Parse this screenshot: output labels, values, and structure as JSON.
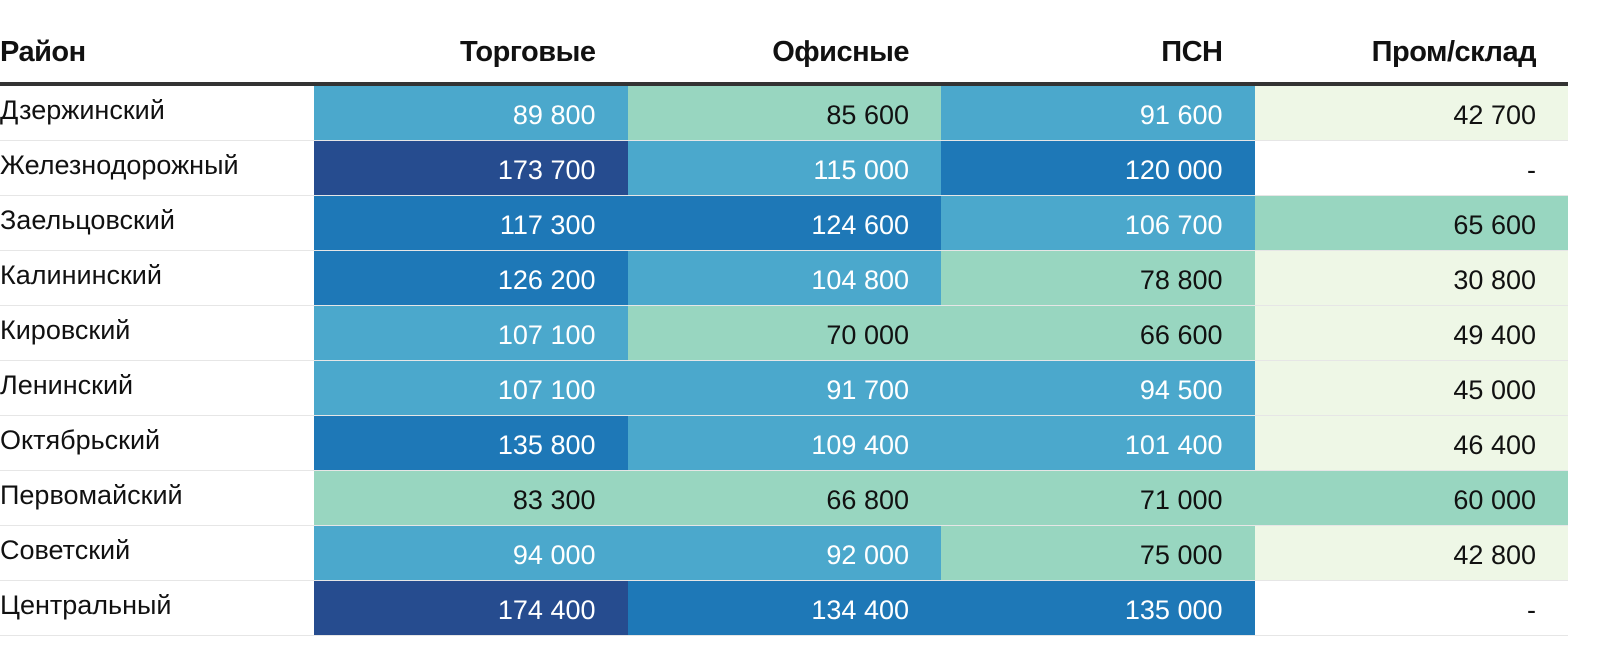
{
  "chart_data": {
    "type": "table",
    "columns": [
      "Район",
      "Торговые",
      "Офисные",
      "ПСН",
      "Пром/склад"
    ],
    "rows": [
      {
        "district": "Дзержинский",
        "values": [
          "89 800",
          "85 600",
          "91 600",
          "42 700"
        ],
        "colors": [
          "#4ba8cc",
          "#98d6c0",
          "#4ba8cc",
          "#eef7e6"
        ]
      },
      {
        "district": "Железнодорожный",
        "values": [
          "173 700",
          "115 000",
          "120 000",
          "-"
        ],
        "colors": [
          "#264c8f",
          "#4ba8cc",
          "#1e78b7",
          "#ffffff"
        ]
      },
      {
        "district": "Заельцовский",
        "values": [
          "117 300",
          "124 600",
          "106 700",
          "65 600"
        ],
        "colors": [
          "#1e78b7",
          "#1e78b7",
          "#4ba8cc",
          "#98d6c0"
        ]
      },
      {
        "district": "Калининский",
        "values": [
          "126 200",
          "104 800",
          "78 800",
          "30 800"
        ],
        "colors": [
          "#1e78b7",
          "#4ba8cc",
          "#98d6c0",
          "#eef7e6"
        ]
      },
      {
        "district": "Кировский",
        "values": [
          "107 100",
          "70 000",
          "66 600",
          "49 400"
        ],
        "colors": [
          "#4ba8cc",
          "#98d6c0",
          "#98d6c0",
          "#eef7e6"
        ]
      },
      {
        "district": "Ленинский",
        "values": [
          "107 100",
          "91 700",
          "94 500",
          "45 000"
        ],
        "colors": [
          "#4ba8cc",
          "#4ba8cc",
          "#4ba8cc",
          "#eef7e6"
        ]
      },
      {
        "district": "Октябрьский",
        "values": [
          "135 800",
          "109 400",
          "101 400",
          "46 400"
        ],
        "colors": [
          "#1e78b7",
          "#4ba8cc",
          "#4ba8cc",
          "#eef7e6"
        ]
      },
      {
        "district": "Первомайский",
        "values": [
          "83 300",
          "66 800",
          "71 000",
          "60 000"
        ],
        "colors": [
          "#98d6c0",
          "#98d6c0",
          "#98d6c0",
          "#98d6c0"
        ]
      },
      {
        "district": "Советский",
        "values": [
          "94 000",
          "92 000",
          "75 000",
          "42 800"
        ],
        "colors": [
          "#4ba8cc",
          "#4ba8cc",
          "#98d6c0",
          "#eef7e6"
        ]
      },
      {
        "district": "Центральный",
        "values": [
          "174 400",
          "134 400",
          "135 000",
          "-"
        ],
        "colors": [
          "#264c8f",
          "#1e78b7",
          "#1e78b7",
          "#ffffff"
        ]
      }
    ],
    "text_colors": {
      "dark_bg": "#ffffff",
      "light_bg": "#111111"
    }
  }
}
